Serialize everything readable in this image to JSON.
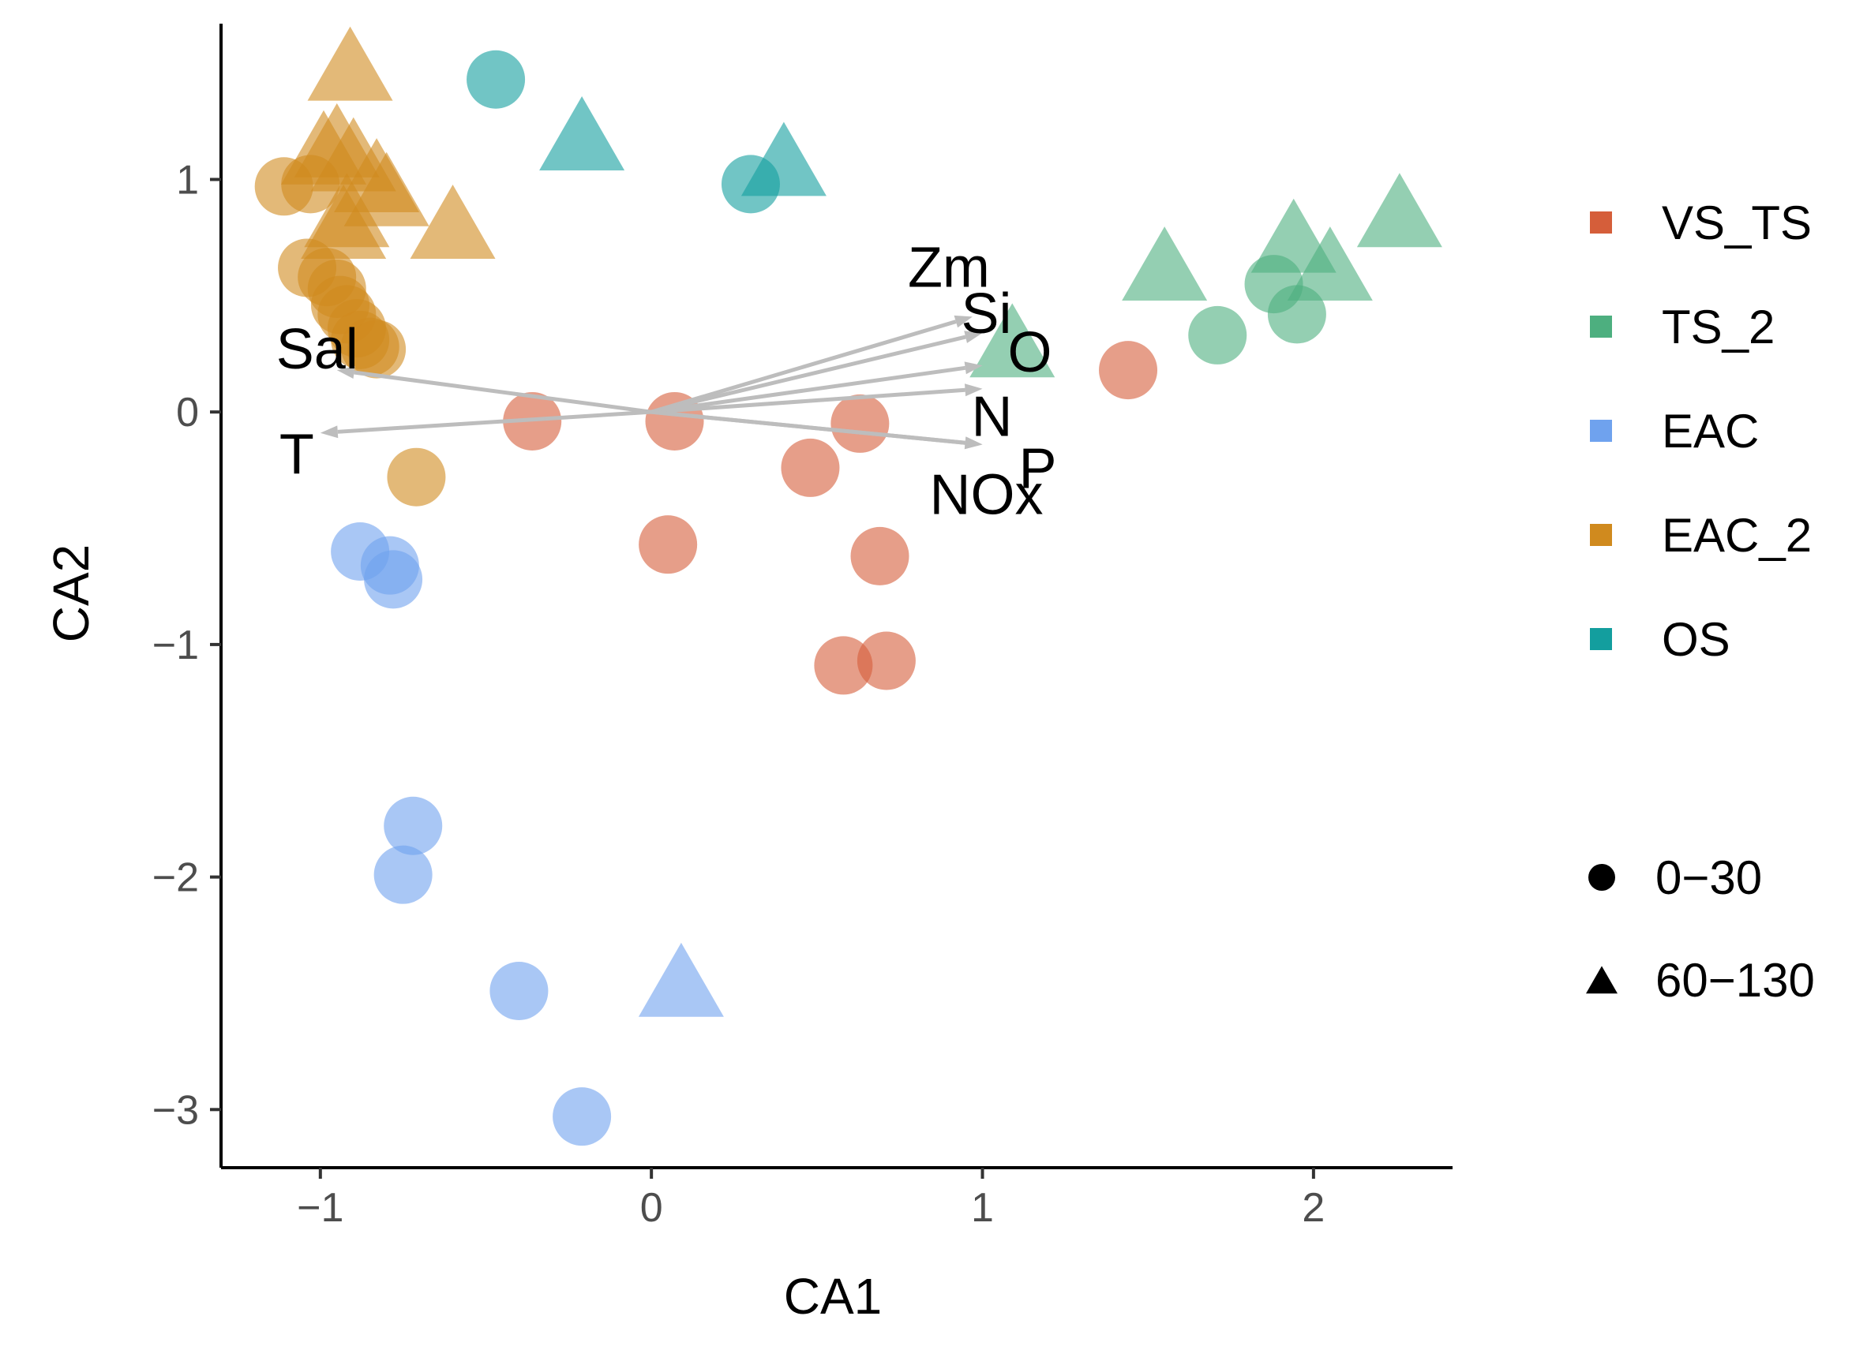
{
  "chart_data": {
    "type": "scatter",
    "xlabel": "CA1",
    "ylabel": "CA2",
    "xlim": [
      -1.3,
      2.42
    ],
    "ylim": [
      -3.25,
      1.67
    ],
    "x_ticks": [
      -1,
      0,
      1,
      2
    ],
    "y_ticks": [
      1,
      0,
      -1,
      -2,
      -3
    ],
    "x_tick_labels": [
      "−1",
      "0",
      "1",
      "2"
    ],
    "y_tick_labels": [
      "1",
      "0",
      "−1",
      "−2",
      "−3"
    ],
    "grid": false,
    "legend_position": "right",
    "groups": [
      {
        "name": "VS_TS",
        "color": "#D55E3A"
      },
      {
        "name": "TS_2",
        "color": "#4DAF7F"
      },
      {
        "name": "EAC",
        "color": "#6FA2EE"
      },
      {
        "name": "EAC_2",
        "color": "#D08A1E"
      },
      {
        "name": "OS",
        "color": "#139E9E"
      }
    ],
    "shapes": [
      {
        "name": "0−30",
        "shape": "circle"
      },
      {
        "name": "60−130",
        "shape": "triangle"
      }
    ],
    "series": [
      {
        "name": "VS_TS",
        "shape": "circle",
        "points": [
          [
            -0.36,
            -0.04
          ],
          [
            0.07,
            -0.04
          ],
          [
            0.63,
            -0.05
          ],
          [
            0.48,
            -0.24
          ],
          [
            0.69,
            -0.62
          ],
          [
            0.05,
            -0.57
          ],
          [
            0.58,
            -1.09
          ],
          [
            0.71,
            -1.07
          ],
          [
            1.44,
            0.18
          ]
        ]
      },
      {
        "name": "TS_2",
        "shape": "circle",
        "points": [
          [
            1.71,
            0.33
          ],
          [
            1.88,
            0.55
          ],
          [
            1.95,
            0.42
          ]
        ]
      },
      {
        "name": "TS_2",
        "shape": "triangle",
        "points": [
          [
            1.55,
            0.6
          ],
          [
            1.94,
            0.72
          ],
          [
            2.05,
            0.6
          ],
          [
            2.26,
            0.83
          ],
          [
            1.09,
            0.27
          ]
        ]
      },
      {
        "name": "EAC",
        "shape": "circle",
        "points": [
          [
            -0.88,
            -0.6
          ],
          [
            -0.79,
            -0.66
          ],
          [
            -0.78,
            -0.72
          ],
          [
            -0.72,
            -1.78
          ],
          [
            -0.75,
            -1.99
          ],
          [
            -0.4,
            -2.49
          ],
          [
            -0.21,
            -3.03
          ]
        ]
      },
      {
        "name": "EAC",
        "shape": "triangle",
        "points": [
          [
            0.09,
            -2.48
          ]
        ]
      },
      {
        "name": "EAC_2",
        "shape": "circle",
        "points": [
          [
            -1.11,
            0.97
          ],
          [
            -1.03,
            0.98
          ],
          [
            -1.04,
            0.62
          ],
          [
            -0.98,
            0.58
          ],
          [
            -0.95,
            0.53
          ],
          [
            -0.94,
            0.46
          ],
          [
            -0.92,
            0.42
          ],
          [
            -0.88,
            0.31
          ],
          [
            -0.85,
            0.28
          ],
          [
            -0.83,
            0.27
          ],
          [
            -0.89,
            0.36
          ],
          [
            -0.71,
            -0.28
          ]
        ]
      },
      {
        "name": "EAC_2",
        "shape": "triangle",
        "points": [
          [
            -0.91,
            1.46
          ],
          [
            -0.99,
            1.1
          ],
          [
            -0.95,
            1.13
          ],
          [
            -0.9,
            1.07
          ],
          [
            -0.83,
            0.98
          ],
          [
            -0.8,
            0.92
          ],
          [
            -0.92,
            0.83
          ],
          [
            -0.93,
            0.78
          ],
          [
            -0.6,
            0.78
          ]
        ]
      },
      {
        "name": "OS",
        "shape": "circle",
        "points": [
          [
            -0.47,
            1.43
          ],
          [
            0.3,
            0.98
          ]
        ]
      },
      {
        "name": "OS",
        "shape": "triangle",
        "points": [
          [
            -0.21,
            1.16
          ],
          [
            0.4,
            1.05
          ]
        ]
      }
    ],
    "vectors": [
      {
        "label": "Zm",
        "x": 0.97,
        "y": 0.41
      },
      {
        "label": "Si",
        "x": 1.0,
        "y": 0.34
      },
      {
        "label": "O",
        "x": 1.0,
        "y": 0.2
      },
      {
        "label": "N",
        "x": 1.0,
        "y": 0.1
      },
      {
        "label": "P",
        "x": 1.0,
        "y": -0.14
      },
      {
        "label": "NOx",
        "x": 1.0,
        "y": -0.14
      },
      {
        "label": "Sal",
        "x": -0.95,
        "y": 0.18
      },
      {
        "label": "T",
        "x": -1.0,
        "y": -0.09
      }
    ]
  }
}
